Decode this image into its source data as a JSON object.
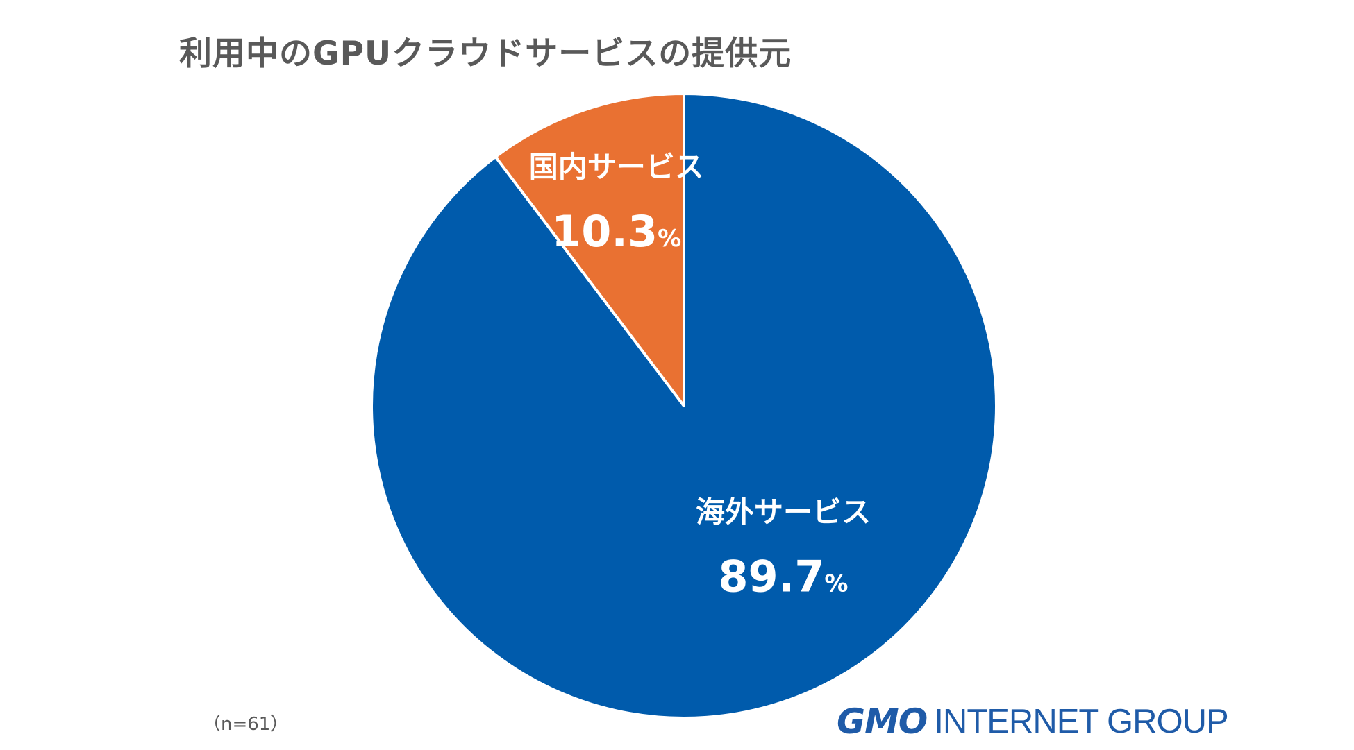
{
  "title": "利用中のGPUクラウドサービスの提供元",
  "sample_note": "（n=61）",
  "logo": {
    "mark": "GMO",
    "text": "INTERNET GROUP",
    "color": "#1f5ba8"
  },
  "chart_data": {
    "type": "pie",
    "title": "利用中のGPUクラウドサービスの提供元",
    "start": "12 o'clock",
    "direction": "clockwise",
    "percent_unit": "%",
    "slices": [
      {
        "label": "海外サービス",
        "value": 89.7,
        "value_text": "89.7",
        "color": "#005bac"
      },
      {
        "label": "国内サービス",
        "value": 10.3,
        "value_text": "10.3",
        "color": "#e97132"
      }
    ]
  }
}
